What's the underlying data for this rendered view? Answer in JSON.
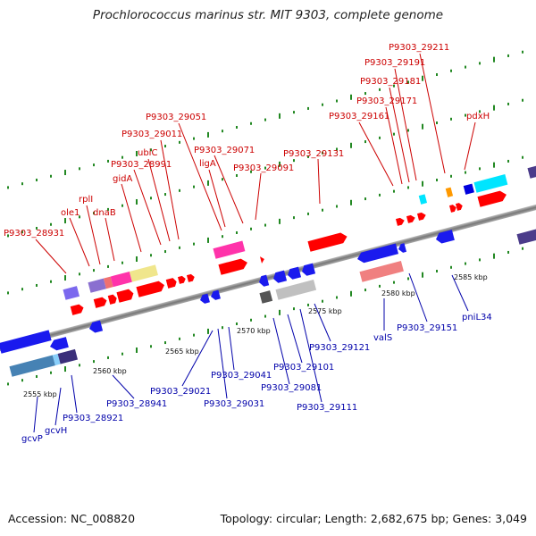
{
  "title": "Prochlorococcus marinus str. MIT 9303, complete genome",
  "footer": {
    "accession": "Accession: NC_008820",
    "summary": "Topology: circular; Length: 2,682,675 bp; Genes: 3,049"
  },
  "colors": {
    "forward": "#ff0000",
    "reverse": "#0000ff",
    "forward_label": "#cc0000",
    "reverse_label": "#0000aa",
    "backbone": "#888888",
    "tick": "#228822"
  },
  "scale_labels": [
    "2555 kbp",
    "2560 kbp",
    "2565 kbp",
    "2570 kbp",
    "2575 kbp",
    "2580 kbp",
    "2585 kbp"
  ],
  "forward_labels": [
    "P9303_28931",
    "ole1",
    "rplI",
    "dnaB",
    "gidA",
    "P9303_28991",
    "ubiC",
    "P9303_29011",
    "P9303_29051",
    "ligA",
    "P9303_29071",
    "P9303_29091",
    "P9303_29131",
    "P9303_29161",
    "P9303_29171",
    "P9303_29181",
    "P9303_29191",
    "P9303_29211",
    "pdxH"
  ],
  "reverse_labels": [
    "gcvP",
    "gcvH",
    "P9303_28921",
    "P9303_28941",
    "P9303_29021",
    "P9303_29031",
    "P9303_29041",
    "P9303_29081",
    "P9303_29101",
    "P9303_29111",
    "P9303_29121",
    "valS",
    "P9303_29151",
    "pniL34"
  ]
}
